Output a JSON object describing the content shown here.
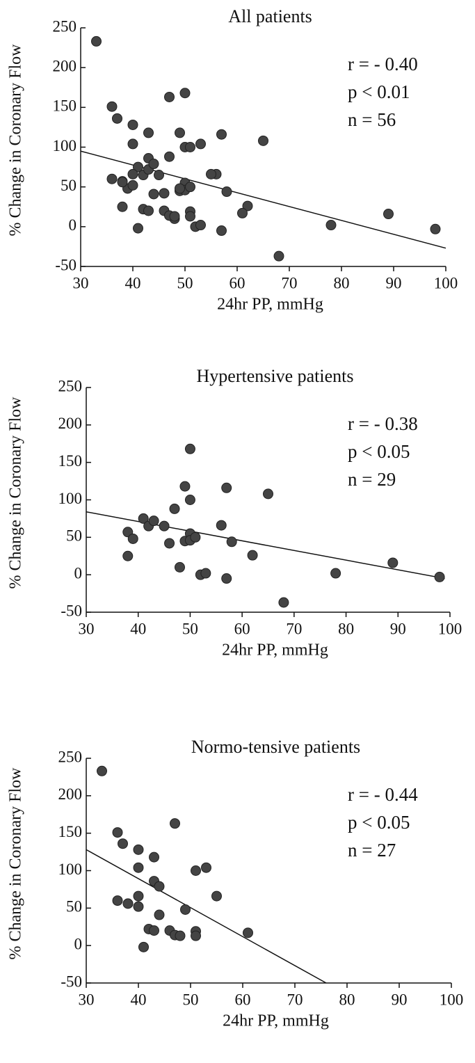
{
  "chart_data": [
    {
      "type": "scatter",
      "title": "All patients",
      "xlabel": "24hr PP, mmHg",
      "ylabel": "% Change in Coronary Flow",
      "annotations": [
        "r = - 0.40",
        "p < 0.01",
        "n = 56"
      ],
      "x": [
        38,
        38,
        39,
        41,
        42,
        43,
        45,
        46,
        47,
        48,
        49,
        49,
        50,
        50,
        50,
        50,
        51,
        52,
        53,
        56,
        57,
        57,
        58,
        62,
        65,
        68,
        78,
        89,
        98,
        33,
        36,
        37,
        40,
        40,
        36,
        38,
        40,
        40,
        41,
        42,
        43,
        43,
        43,
        44,
        44,
        46,
        47,
        47,
        48,
        49,
        51,
        51,
        51,
        53,
        55,
        61
      ],
      "y": [
        57,
        25,
        48,
        75,
        65,
        72,
        65,
        42,
        88,
        10,
        118,
        45,
        168,
        100,
        55,
        46,
        50,
        0,
        2,
        66,
        116,
        -5,
        44,
        26,
        108,
        -37,
        2,
        16,
        -3,
        233,
        151,
        136,
        128,
        104,
        60,
        56,
        66,
        52,
        -2,
        22,
        118,
        86,
        20,
        79,
        41,
        20,
        163,
        14,
        13,
        48,
        100,
        19,
        13,
        104,
        66,
        17
      ],
      "color": "#444444",
      "trendline": {
        "x": [
          30,
          100
        ],
        "y": [
          95,
          -27
        ]
      },
      "xlim": [
        30,
        100
      ],
      "ylim": [
        -50,
        250
      ],
      "xticks": [
        30,
        40,
        50,
        60,
        70,
        80,
        90,
        100
      ],
      "yticks": [
        -50,
        0,
        50,
        100,
        150,
        200,
        250
      ]
    },
    {
      "type": "scatter",
      "title": "Hypertensive  patients",
      "xlabel": "24hr PP, mmHg",
      "ylabel": "% Change in Coronary Flow",
      "annotations": [
        "r = - 0.38",
        "p < 0.05",
        "n = 29"
      ],
      "x": [
        38,
        38,
        39,
        41,
        42,
        43,
        45,
        46,
        47,
        48,
        49,
        49,
        50,
        50,
        50,
        50,
        51,
        52,
        53,
        56,
        57,
        57,
        58,
        62,
        65,
        68,
        78,
        89,
        98
      ],
      "y": [
        57,
        25,
        48,
        75,
        65,
        72,
        65,
        42,
        88,
        10,
        118,
        45,
        168,
        100,
        55,
        46,
        50,
        0,
        2,
        66,
        116,
        -5,
        44,
        26,
        108,
        -37,
        2,
        16,
        -3
      ],
      "color": "#444444",
      "trendline": {
        "x": [
          30,
          99
        ],
        "y": [
          84,
          -5
        ]
      },
      "xlim": [
        30,
        100
      ],
      "ylim": [
        -50,
        250
      ],
      "xticks": [
        30,
        40,
        50,
        60,
        70,
        80,
        90,
        100
      ],
      "yticks": [
        -50,
        0,
        50,
        100,
        150,
        200,
        250
      ]
    },
    {
      "type": "scatter",
      "title": "Normo-tensive patients",
      "xlabel": "24hr PP, mmHg",
      "ylabel": "% Change in Coronary Flow",
      "annotations": [
        "r = - 0.44",
        "p < 0.05",
        "n = 27"
      ],
      "x": [
        33,
        36,
        37,
        40,
        40,
        36,
        38,
        40,
        40,
        41,
        42,
        43,
        43,
        43,
        44,
        44,
        46,
        47,
        47,
        48,
        49,
        51,
        51,
        51,
        53,
        55,
        61
      ],
      "y": [
        233,
        151,
        136,
        128,
        104,
        60,
        56,
        66,
        52,
        -2,
        22,
        118,
        86,
        20,
        79,
        41,
        20,
        163,
        14,
        13,
        48,
        100,
        19,
        13,
        104,
        66,
        17
      ],
      "color": "#444444",
      "trendline": {
        "x": [
          30,
          76
        ],
        "y": [
          128,
          -50
        ]
      },
      "xlim": [
        30,
        100
      ],
      "ylim": [
        -50,
        250
      ],
      "xticks": [
        30,
        40,
        50,
        60,
        70,
        80,
        90,
        100
      ],
      "yticks": [
        -50,
        0,
        50,
        100,
        150,
        200,
        250
      ]
    }
  ]
}
